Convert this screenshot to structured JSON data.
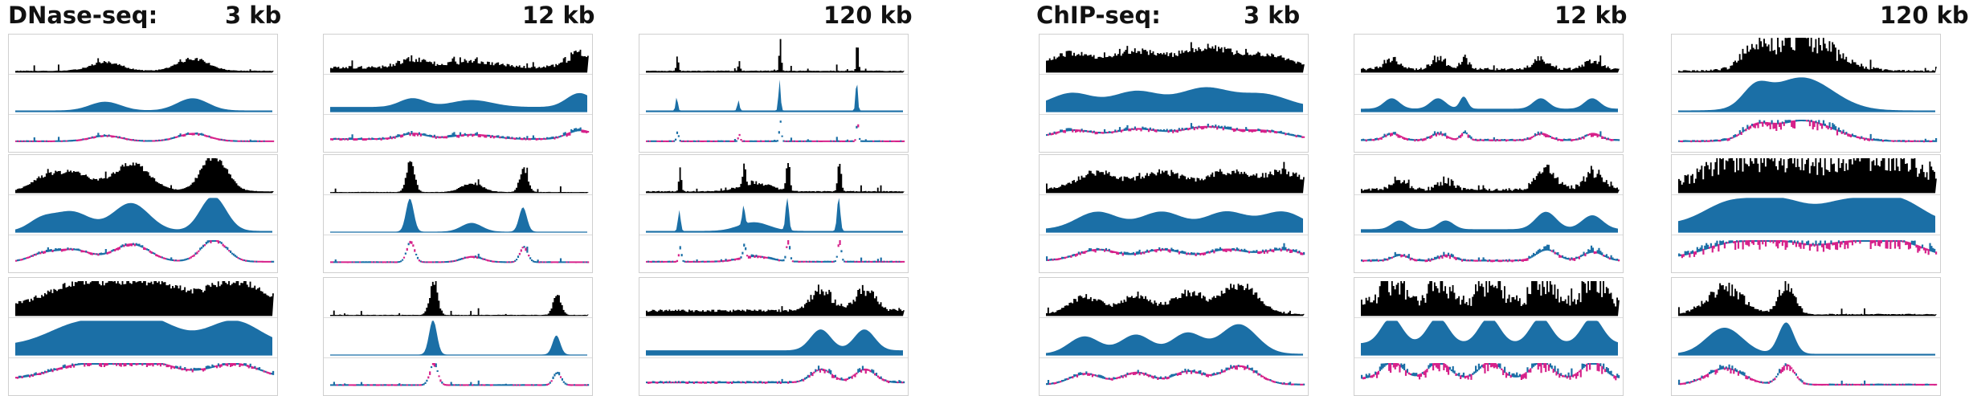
{
  "labels": {
    "dnase": "DNase-seq:",
    "chip": "ChIP-seq:",
    "scale_3kb": "3 kb",
    "scale_12kb": "12 kb",
    "scale_120kb": "120 kb"
  },
  "colors": {
    "raw": "#000000",
    "smooth": "#1b6fa6",
    "residual_pos": "#1b6fa6",
    "residual_neg": "#d6218a",
    "panel_border": "#cfcfcf"
  },
  "chart_data": {
    "type": "area",
    "groups": [
      {
        "assay": "DNase-seq",
        "columns": [
          "3 kb",
          "12 kb",
          "120 kb"
        ],
        "rows": 3,
        "tracks_per_panel": [
          "raw signal",
          "smoothed signal",
          "residual"
        ]
      },
      {
        "assay": "ChIP-seq",
        "columns": [
          "3 kb",
          "12 kb",
          "120 kb"
        ],
        "rows": 3,
        "tracks_per_panel": [
          "raw signal",
          "smoothed signal",
          "residual"
        ]
      }
    ],
    "panels": [
      {
        "id": "d-3-1",
        "peaks": [
          [
            0.35,
            0.25,
            0.06
          ],
          [
            0.69,
            0.35,
            0.06
          ]
        ],
        "base": 0.05,
        "noise": 0.25
      },
      {
        "id": "d-12-1",
        "peaks": [
          [
            0.32,
            0.25,
            0.05
          ],
          [
            0.55,
            0.2,
            0.08
          ],
          [
            0.97,
            0.4,
            0.05
          ]
        ],
        "base": 0.15,
        "noise": 0.55
      },
      {
        "id": "d-120-1",
        "peaks": [
          [
            0.52,
            0.9,
            0.004
          ],
          [
            0.82,
            0.9,
            0.004
          ],
          [
            0.12,
            0.4,
            0.004
          ],
          [
            0.36,
            0.3,
            0.004
          ]
        ],
        "base": 0.05,
        "noise": 0.3
      },
      {
        "id": "d-3-2",
        "peaks": [
          [
            0.22,
            0.55,
            0.07
          ],
          [
            0.45,
            0.8,
            0.07
          ],
          [
            0.77,
            1.0,
            0.05
          ],
          [
            0.1,
            0.3,
            0.05
          ]
        ],
        "base": 0.05,
        "noise": 0.2
      },
      {
        "id": "d-12-2",
        "peaks": [
          [
            0.31,
            0.95,
            0.015
          ],
          [
            0.75,
            0.7,
            0.015
          ],
          [
            0.55,
            0.25,
            0.04
          ]
        ],
        "base": 0.03,
        "noise": 0.25
      },
      {
        "id": "d-120-2",
        "peaks": [
          [
            0.55,
            1.0,
            0.006
          ],
          [
            0.75,
            1.0,
            0.006
          ],
          [
            0.13,
            0.6,
            0.005
          ],
          [
            0.38,
            0.55,
            0.005
          ],
          [
            0.42,
            0.25,
            0.06
          ]
        ],
        "base": 0.05,
        "noise": 0.4
      },
      {
        "id": "d-3-3",
        "peaks": [
          [
            0.25,
            0.6,
            0.12
          ],
          [
            0.5,
            0.8,
            0.12
          ],
          [
            0.85,
            0.7,
            0.1
          ]
        ],
        "base": 0.3,
        "noise": 0.25
      },
      {
        "id": "d-12-3",
        "peaks": [
          [
            0.4,
            1.0,
            0.015
          ],
          [
            0.88,
            0.55,
            0.015
          ]
        ],
        "base": 0.03,
        "noise": 0.35
      },
      {
        "id": "d-120-3",
        "peaks": [
          [
            0.68,
            0.6,
            0.04
          ],
          [
            0.85,
            0.6,
            0.04
          ]
        ],
        "base": 0.15,
        "noise": 0.5
      },
      {
        "id": "c-3-1",
        "peaks": [
          [
            0.1,
            0.4,
            0.08
          ],
          [
            0.35,
            0.45,
            0.09
          ],
          [
            0.62,
            0.55,
            0.1
          ],
          [
            0.85,
            0.35,
            0.09
          ]
        ],
        "base": 0.15,
        "noise": 0.3
      },
      {
        "id": "c-12-1",
        "peaks": [
          [
            0.12,
            0.3,
            0.03
          ],
          [
            0.3,
            0.3,
            0.03
          ],
          [
            0.4,
            0.35,
            0.015
          ],
          [
            0.7,
            0.3,
            0.03
          ],
          [
            0.9,
            0.3,
            0.03
          ]
        ],
        "base": 0.1,
        "noise": 0.7
      },
      {
        "id": "c-120-1",
        "peaks": [
          [
            0.48,
            0.95,
            0.12
          ],
          [
            0.3,
            0.5,
            0.05
          ]
        ],
        "base": 0.05,
        "noise": 0.8
      },
      {
        "id": "c-3-2",
        "peaks": [
          [
            0.2,
            0.5,
            0.08
          ],
          [
            0.45,
            0.5,
            0.08
          ],
          [
            0.7,
            0.5,
            0.08
          ],
          [
            0.92,
            0.5,
            0.08
          ]
        ],
        "base": 0.1,
        "noise": 0.35
      },
      {
        "id": "c-12-2",
        "peaks": [
          [
            0.15,
            0.25,
            0.03
          ],
          [
            0.33,
            0.25,
            0.03
          ],
          [
            0.72,
            0.5,
            0.04
          ],
          [
            0.9,
            0.4,
            0.04
          ]
        ],
        "base": 0.1,
        "noise": 0.8
      },
      {
        "id": "c-120-2",
        "peaks": [
          [
            0.2,
            0.6,
            0.1
          ],
          [
            0.4,
            0.65,
            0.1
          ],
          [
            0.65,
            0.6,
            0.1
          ],
          [
            0.85,
            0.7,
            0.1
          ]
        ],
        "base": 0.25,
        "noise": 0.8
      },
      {
        "id": "c-3-3",
        "peaks": [
          [
            0.15,
            0.5,
            0.06
          ],
          [
            0.35,
            0.55,
            0.06
          ],
          [
            0.55,
            0.6,
            0.06
          ],
          [
            0.75,
            0.85,
            0.07
          ]
        ],
        "base": 0.05,
        "noise": 0.35
      },
      {
        "id": "c-12-3",
        "peaks": [
          [
            0.12,
            0.75,
            0.04
          ],
          [
            0.3,
            0.75,
            0.04
          ],
          [
            0.5,
            0.75,
            0.04
          ],
          [
            0.7,
            0.75,
            0.04
          ],
          [
            0.9,
            0.75,
            0.04
          ]
        ],
        "base": 0.35,
        "noise": 0.9
      },
      {
        "id": "c-120-3",
        "peaks": [
          [
            0.18,
            0.75,
            0.07
          ],
          [
            0.42,
            0.9,
            0.03
          ]
        ],
        "base": 0.05,
        "noise": 0.5
      }
    ]
  }
}
